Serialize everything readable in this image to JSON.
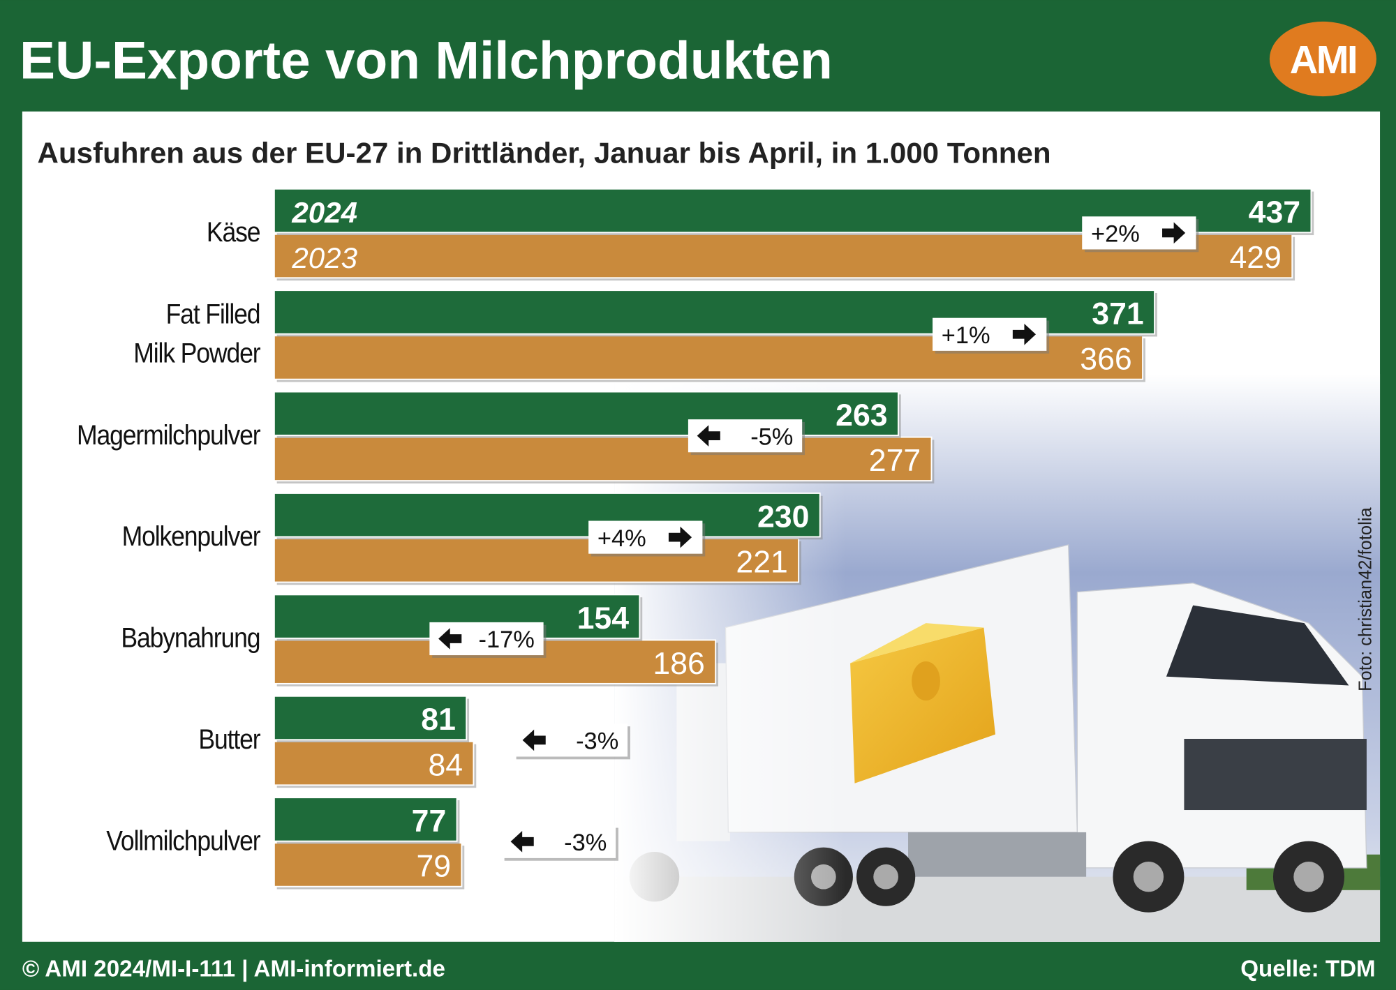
{
  "chart_data": {
    "type": "bar",
    "orientation": "horizontal",
    "title": "EU-Exporte von Milchprodukten",
    "subtitle": "Ausfuhren aus der EU-27 in Drittländer, Januar bis April, in 1.000 Tonnen",
    "logo": "AMI",
    "categories": [
      "Käse",
      "Fat Filled\nMilk Powder",
      "Magermilchpulver",
      "Molkenpulver",
      "Babynahrung",
      "Butter",
      "Vollmilchpulver"
    ],
    "series": [
      {
        "name": "2024",
        "color": "#1e6b3a",
        "values": [
          437,
          371,
          263,
          230,
          154,
          81,
          77
        ]
      },
      {
        "name": "2023",
        "color": "#c98a3c",
        "values": [
          429,
          366,
          277,
          221,
          186,
          84,
          79
        ]
      }
    ],
    "change_labels": [
      "+2%",
      "+1%",
      "-5%",
      "+4%",
      "-17%",
      "-3%",
      "-3%"
    ],
    "xlim": [
      0,
      466
    ],
    "photo_credit": "Foto: christian42/fotolia",
    "footer": "© AMI 2024/MI-I-111 | AMI-informiert.de",
    "source": "Quelle: TDM"
  }
}
